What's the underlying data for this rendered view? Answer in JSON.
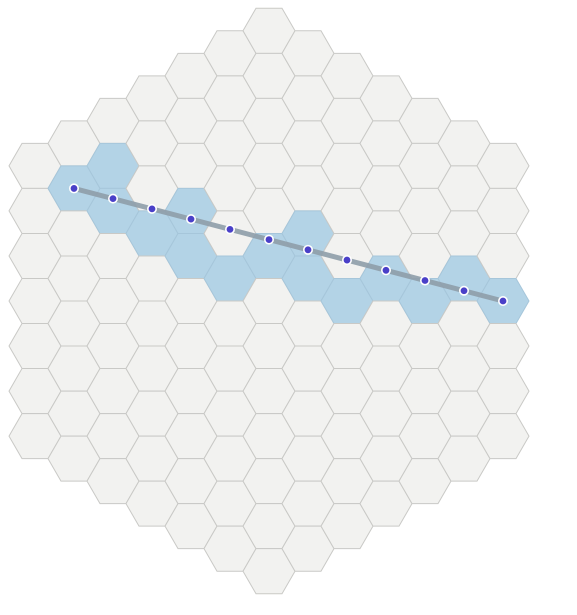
{
  "grid": {
    "type": "hexagonal-grid",
    "orientation": "flat-top",
    "rings": 6,
    "cell_count": 127
  },
  "line": {
    "start_cell": [
      -5,
      0
    ],
    "end_cell": [
      6,
      -3
    ],
    "point_count": 12,
    "highlighted_cells": [
      [
        -5,
        0
      ],
      [
        -4,
        0
      ],
      [
        -4,
        -1
      ],
      [
        -3,
        0
      ],
      [
        -2,
        0
      ],
      [
        -2,
        -1
      ],
      [
        -1,
        0
      ],
      [
        0,
        -1
      ],
      [
        1,
        -1
      ],
      [
        1,
        -2
      ],
      [
        2,
        -1
      ],
      [
        3,
        -2
      ],
      [
        4,
        -2
      ],
      [
        5,
        -3
      ],
      [
        6,
        -3
      ]
    ]
  },
  "colors": {
    "cell_fill": "#f2f2f0",
    "cell_stroke": "#c9c9c6",
    "highlight_fill": "#b3d3e6",
    "highlight_stroke": "#a6c6da",
    "line_stroke": "#8f9eaa",
    "point_fill": "#4a40c8",
    "point_stroke": "#ffffff"
  }
}
